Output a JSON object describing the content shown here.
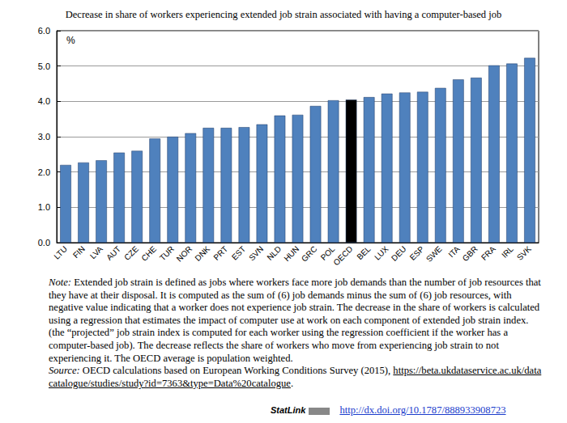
{
  "chart_data": {
    "type": "bar",
    "title": "Decrease in share of workers experiencing extended job strain associated with having a computer-based job",
    "y_label": "%",
    "categories": [
      "LTU",
      "FIN",
      "LVA",
      "AUT",
      "CZE",
      "CHE",
      "TUR",
      "NOR",
      "DNK",
      "PRT",
      "EST",
      "SVN",
      "NLD",
      "HUN",
      "GRC",
      "POL",
      "OECD",
      "BEL",
      "LUX",
      "DEU",
      "ESP",
      "SWE",
      "ITA",
      "GBR",
      "FRA",
      "IRL",
      "SVK"
    ],
    "values": [
      2.2,
      2.27,
      2.33,
      2.55,
      2.6,
      2.95,
      3.0,
      3.1,
      3.25,
      3.25,
      3.27,
      3.35,
      3.6,
      3.62,
      3.87,
      4.03,
      4.05,
      4.12,
      4.22,
      4.25,
      4.27,
      4.38,
      4.62,
      4.67,
      5.02,
      5.07,
      5.23
    ],
    "colors": [
      "#4f81bd",
      "#4f81bd",
      "#4f81bd",
      "#4f81bd",
      "#4f81bd",
      "#4f81bd",
      "#4f81bd",
      "#4f81bd",
      "#4f81bd",
      "#4f81bd",
      "#4f81bd",
      "#4f81bd",
      "#4f81bd",
      "#4f81bd",
      "#4f81bd",
      "#4f81bd",
      "#000000",
      "#4f81bd",
      "#4f81bd",
      "#4f81bd",
      "#4f81bd",
      "#4f81bd",
      "#4f81bd",
      "#4f81bd",
      "#4f81bd",
      "#4f81bd",
      "#4f81bd"
    ],
    "ylim": [
      0,
      6
    ],
    "yticks": [
      {
        "value": 0,
        "label": "0.0"
      },
      {
        "value": 1,
        "label": "1.0"
      },
      {
        "value": 2,
        "label": "2.0"
      },
      {
        "value": 3,
        "label": "3.0"
      },
      {
        "value": 4,
        "label": "4.0"
      },
      {
        "value": 5,
        "label": "5.0"
      },
      {
        "value": 6,
        "label": "6.0"
      }
    ],
    "grid": true,
    "note": {
      "label": "Note:",
      "text": "Extended job strain is defined as jobs where workers face more job demands than the number of job resources that they have at their disposal. It is computed as the sum of (6) job demands minus the sum of (6) job resources, with negative value indicating that a worker does not experience job strain. The decrease in the share of workers is calculated using a regression that estimates the impact of computer use at work on each component of extended job strain index. (the “projected” job strain index is computed for each worker using the regression coefficient if the worker has a computer-based job). The decrease reflects the share of workers who move from experiencing job strain to not experiencing it. The OECD average is population weighted."
    },
    "source": {
      "label": "Source:",
      "text": "OECD calculations based on European Working Conditions Survey (2015),",
      "url": "https://beta.ukdataservice.ac.uk/datacatalogue/studies/study?id=7363&type=Data%20catalogue",
      "end": "."
    },
    "statlink": {
      "label": "StatLink",
      "url": "http://dx.doi.org/10.1787/888933908723"
    }
  }
}
